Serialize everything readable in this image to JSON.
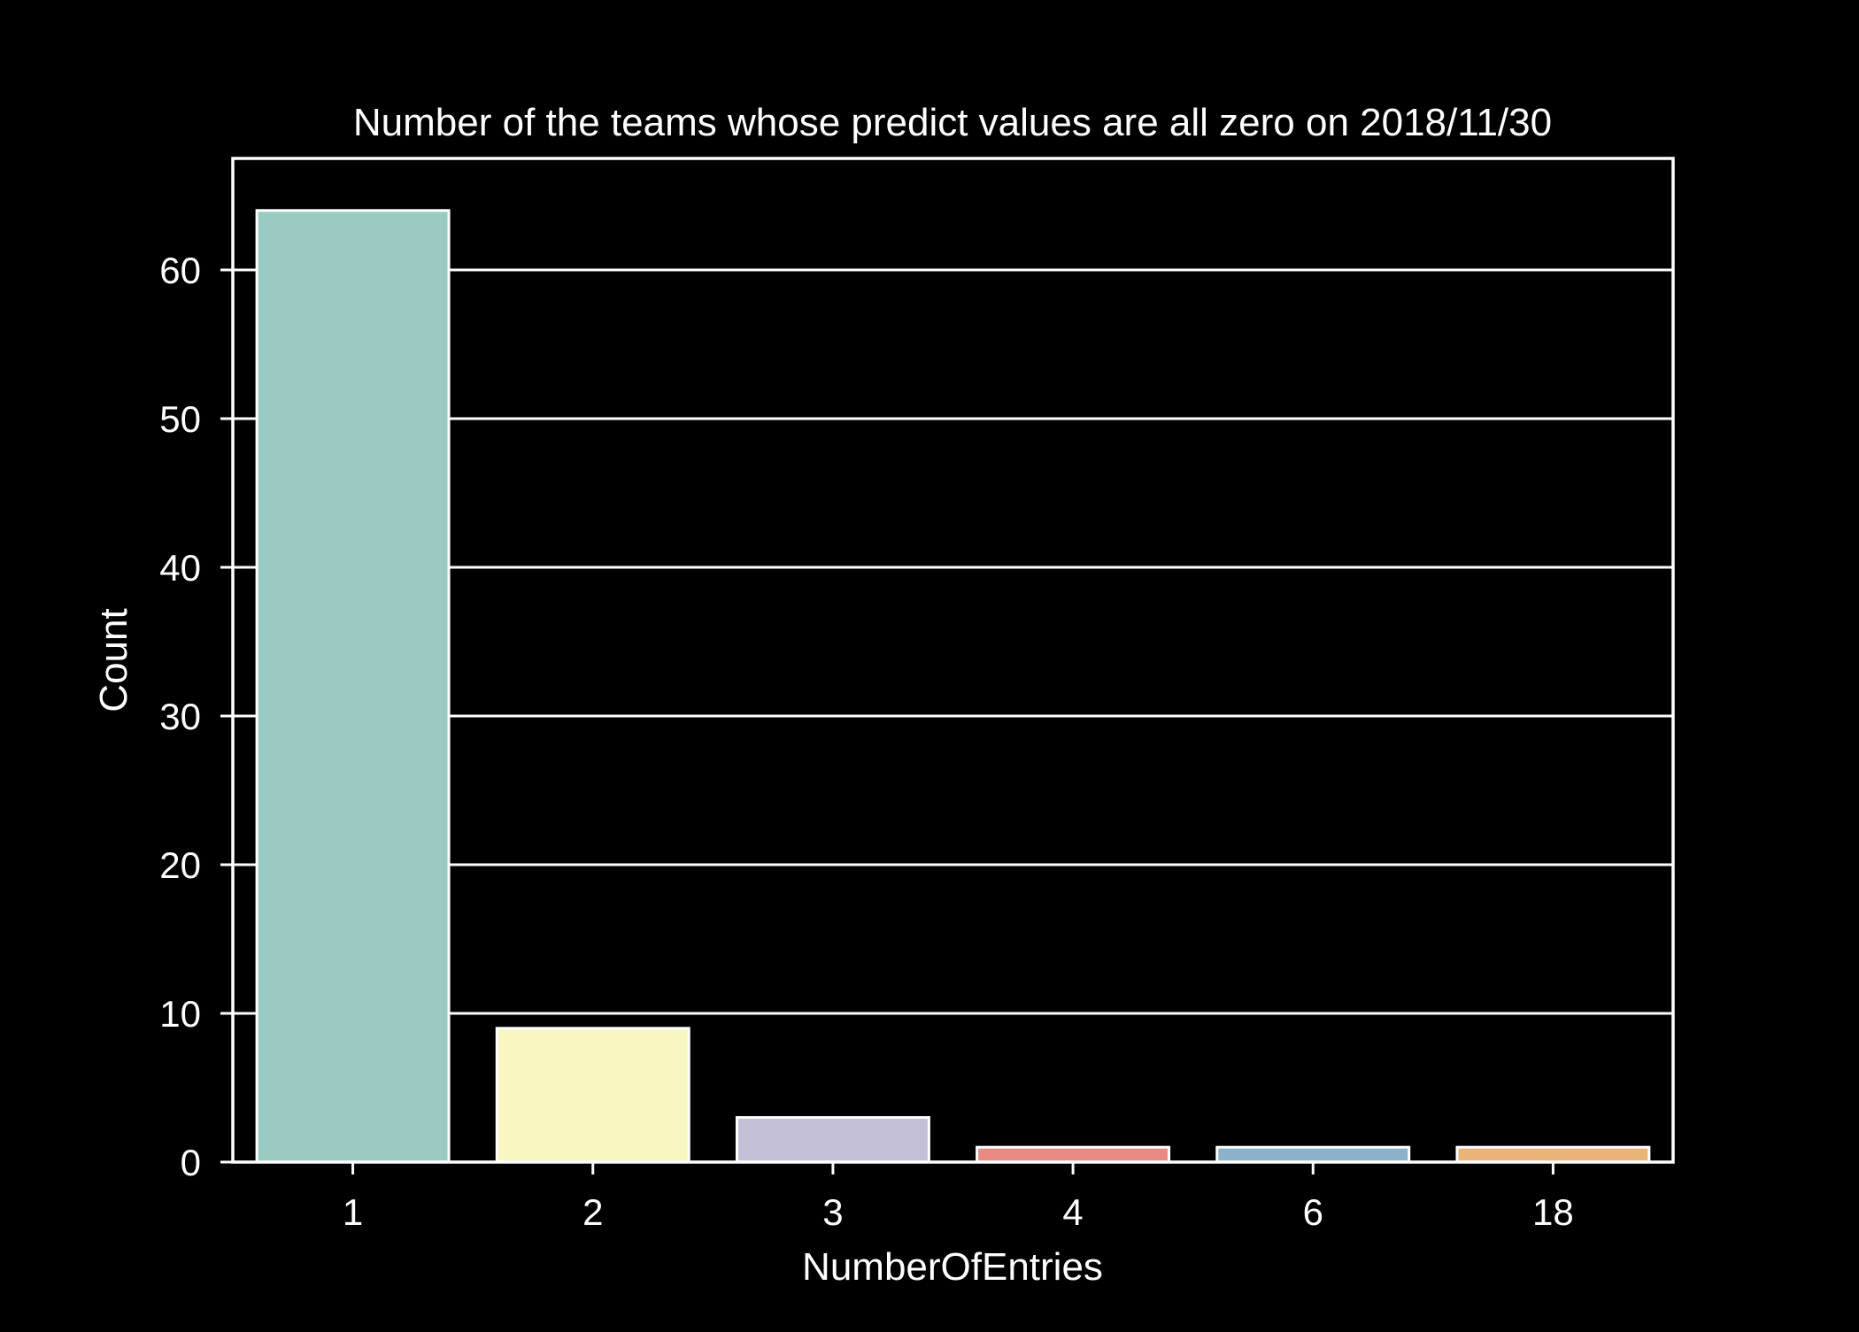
{
  "chart_data": {
    "type": "bar",
    "title": "Number of the teams whose predict values are all zero on 2018/11/30",
    "xlabel": "NumberOfEntries",
    "ylabel": "Count",
    "categories": [
      "1",
      "2",
      "3",
      "4",
      "6",
      "18"
    ],
    "values": [
      64,
      9,
      3,
      1,
      1,
      1
    ],
    "colors": [
      "#99cbc3",
      "#f7f7bf",
      "#c3c0d8",
      "#e88b84",
      "#8cb1cb",
      "#eab479"
    ],
    "ylim": [
      0,
      67.5
    ],
    "yticks": [
      0,
      10,
      20,
      30,
      40,
      50,
      60
    ],
    "grid": true,
    "background": "#000000",
    "foreground": "#ffffff"
  }
}
